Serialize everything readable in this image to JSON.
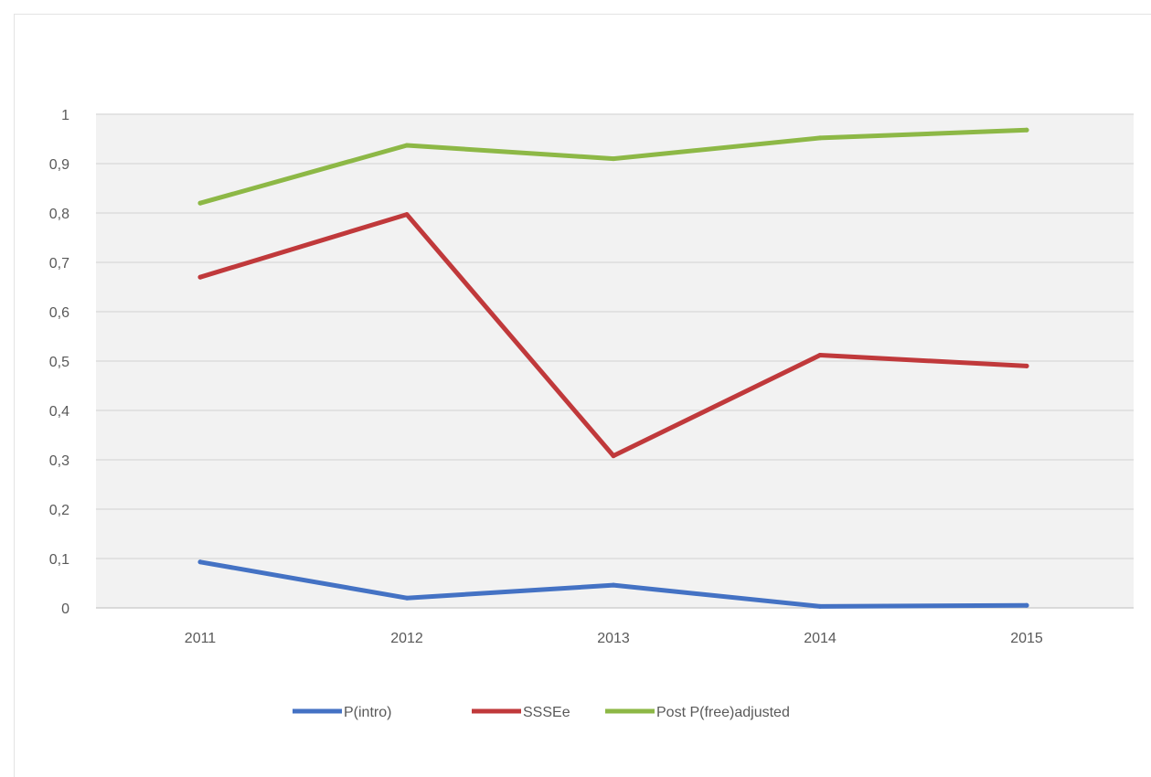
{
  "chart_data": {
    "type": "line",
    "title": "",
    "xlabel": "",
    "ylabel": "",
    "categories": [
      "2011",
      "2012",
      "2013",
      "2014",
      "2015"
    ],
    "ylim": [
      0,
      1
    ],
    "yticks": [
      {
        "value": 0,
        "label": "0"
      },
      {
        "value": 0.1,
        "label": "0,1"
      },
      {
        "value": 0.2,
        "label": "0,2"
      },
      {
        "value": 0.3,
        "label": "0,3"
      },
      {
        "value": 0.4,
        "label": "0,4"
      },
      {
        "value": 0.5,
        "label": "0,5"
      },
      {
        "value": 0.6,
        "label": "0,6"
      },
      {
        "value": 0.7,
        "label": "0,7"
      },
      {
        "value": 0.8,
        "label": "0,8"
      },
      {
        "value": 0.9,
        "label": "0,9"
      },
      {
        "value": 1,
        "label": "1"
      }
    ],
    "grid": true,
    "legend_position": "bottom",
    "plot_background": "#f2f2f2",
    "series": [
      {
        "name": "P(intro)",
        "color": "#4472c4",
        "values": [
          0.093,
          0.02,
          0.046,
          0.003,
          0.005
        ]
      },
      {
        "name": "SSSEe",
        "color": "#c0393b",
        "values": [
          0.67,
          0.797,
          0.308,
          0.512,
          0.49
        ]
      },
      {
        "name": "Post P(free)adjusted",
        "color": "#8db846",
        "values": [
          0.82,
          0.937,
          0.91,
          0.952,
          0.968
        ]
      }
    ]
  }
}
